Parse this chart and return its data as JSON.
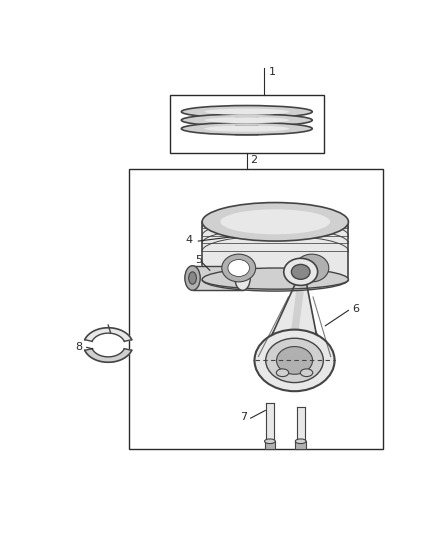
{
  "bg_color": "#ffffff",
  "line_color": "#2a2a2a",
  "dark_gray": "#444444",
  "mid_gray": "#888888",
  "light_gray": "#cccccc",
  "fill_light": "#e8e8e8",
  "fill_mid": "#d0d0d0",
  "fill_dark": "#b0b0b0",
  "figsize": [
    4.38,
    5.33
  ],
  "dpi": 100
}
